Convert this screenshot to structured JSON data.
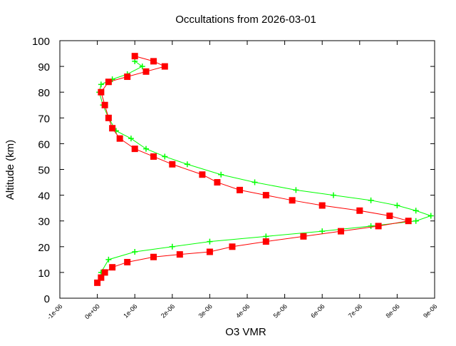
{
  "chart_data": {
    "type": "scatter",
    "title": "Occultations from 2026-03-01",
    "xlabel": "O3 VMR",
    "ylabel": "Altitude (km)",
    "xlim": [
      -1e-06,
      9e-06
    ],
    "ylim": [
      0,
      100
    ],
    "xticks": [
      "-1e-06",
      "0e+00",
      "1e-06",
      "2e-06",
      "3e-06",
      "4e-06",
      "5e-06",
      "6e-06",
      "7e-06",
      "8e-06",
      "9e-06"
    ],
    "xtick_values": [
      -1e-06,
      0,
      1e-06,
      2e-06,
      3e-06,
      4e-06,
      5e-06,
      6e-06,
      7e-06,
      8e-06,
      9e-06
    ],
    "yticks": [
      0,
      10,
      20,
      30,
      40,
      50,
      60,
      70,
      80,
      90,
      100
    ],
    "grid": false,
    "series": [
      {
        "color": "#00ff00",
        "marker": "plus",
        "points": [
          [
            1e-07,
            10
          ],
          [
            3e-07,
            15
          ],
          [
            1e-06,
            18
          ],
          [
            2e-06,
            20
          ],
          [
            3e-06,
            22
          ],
          [
            4.5e-06,
            24
          ],
          [
            6e-06,
            26
          ],
          [
            7.3e-06,
            28
          ],
          [
            8.5e-06,
            30
          ],
          [
            8.9e-06,
            32
          ],
          [
            8.5e-06,
            34
          ],
          [
            8e-06,
            36
          ],
          [
            7.3e-06,
            38
          ],
          [
            6.3e-06,
            40
          ],
          [
            5.3e-06,
            42
          ],
          [
            4.2e-06,
            45
          ],
          [
            3.3e-06,
            48
          ],
          [
            2.4e-06,
            52
          ],
          [
            1.8e-06,
            55
          ],
          [
            1.3e-06,
            58
          ],
          [
            9e-07,
            62
          ],
          [
            5e-07,
            65
          ],
          [
            3e-07,
            70
          ],
          [
            1.5e-07,
            75
          ],
          [
            5e-08,
            80
          ],
          [
            1e-07,
            83
          ],
          [
            4e-07,
            85
          ],
          [
            8e-07,
            87
          ],
          [
            1.2e-06,
            90
          ],
          [
            1e-06,
            92
          ]
        ]
      },
      {
        "color": "#ff0000",
        "marker": "square",
        "points": [
          [
            0,
            6
          ],
          [
            1e-07,
            8
          ],
          [
            2e-07,
            10
          ],
          [
            4e-07,
            12
          ],
          [
            8e-07,
            14
          ],
          [
            1.5e-06,
            16
          ],
          [
            2.2e-06,
            17
          ],
          [
            3e-06,
            18
          ],
          [
            3.6e-06,
            20
          ],
          [
            4.5e-06,
            22
          ],
          [
            5.5e-06,
            24
          ],
          [
            6.5e-06,
            26
          ],
          [
            7.5e-06,
            28
          ],
          [
            8.3e-06,
            30
          ],
          [
            7.8e-06,
            32
          ],
          [
            7e-06,
            34
          ],
          [
            6e-06,
            36
          ],
          [
            5.2e-06,
            38
          ],
          [
            4.5e-06,
            40
          ],
          [
            3.8e-06,
            42
          ],
          [
            3.2e-06,
            45
          ],
          [
            2.8e-06,
            48
          ],
          [
            2e-06,
            52
          ],
          [
            1.5e-06,
            55
          ],
          [
            1e-06,
            58
          ],
          [
            6e-07,
            62
          ],
          [
            4e-07,
            66
          ],
          [
            3e-07,
            70
          ],
          [
            2e-07,
            75
          ],
          [
            1e-07,
            80
          ],
          [
            3e-07,
            84
          ],
          [
            8e-07,
            86
          ],
          [
            1.3e-06,
            88
          ],
          [
            1.8e-06,
            90
          ],
          [
            1.5e-06,
            92
          ],
          [
            1e-06,
            94
          ]
        ]
      }
    ]
  }
}
